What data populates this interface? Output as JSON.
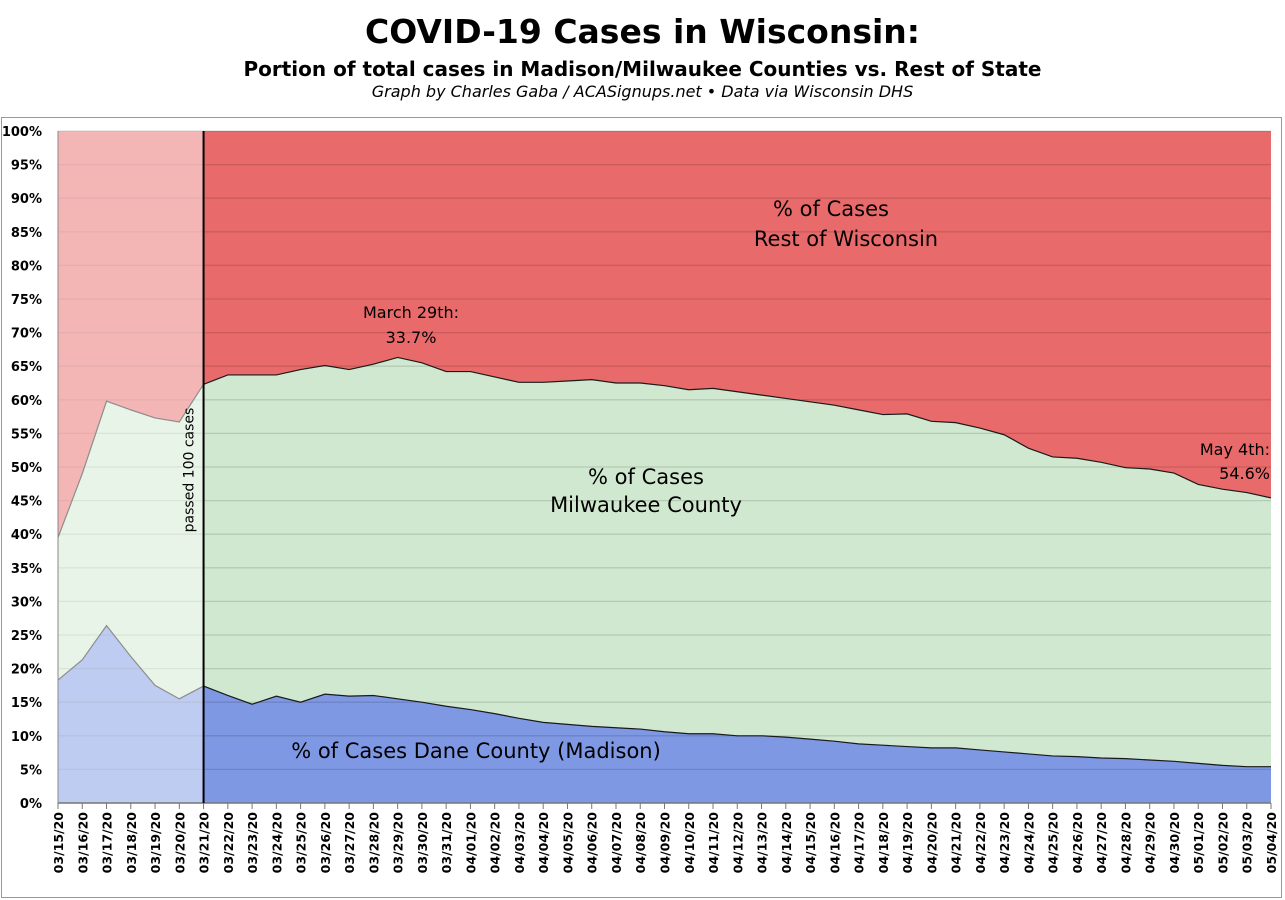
{
  "chart_data": {
    "type": "area",
    "stacked": true,
    "title": "COVID-19 Cases in Wisconsin:",
    "subtitle": "Portion of total cases in Madison/Milwaukee Counties vs. Rest of State",
    "credit": "Graph by Charles Gaba / ACASignups.net  •  Data via Wisconsin DHS",
    "xlabel": "",
    "ylabel": "",
    "ylim": [
      0,
      100
    ],
    "yticks": [
      "0%",
      "5%",
      "10%",
      "15%",
      "20%",
      "25%",
      "30%",
      "35%",
      "40%",
      "45%",
      "50%",
      "55%",
      "60%",
      "65%",
      "70%",
      "75%",
      "80%",
      "85%",
      "90%",
      "95%",
      "100%"
    ],
    "grid": true,
    "categories": [
      "03/15/20",
      "03/16/20",
      "03/17/20",
      "03/18/20",
      "03/19/20",
      "03/20/20",
      "03/21/20",
      "03/22/20",
      "03/23/20",
      "03/24/20",
      "03/25/20",
      "03/26/20",
      "03/27/20",
      "03/28/20",
      "03/29/20",
      "03/30/20",
      "03/31/20",
      "04/01/20",
      "04/02/20",
      "04/03/20",
      "04/04/20",
      "04/05/20",
      "04/06/20",
      "04/07/20",
      "04/08/20",
      "04/09/20",
      "04/10/20",
      "04/11/20",
      "04/12/20",
      "04/13/20",
      "04/14/20",
      "04/15/20",
      "04/16/20",
      "04/17/20",
      "04/18/20",
      "04/19/20",
      "04/20/20",
      "04/21/20",
      "04/22/20",
      "04/23/20",
      "04/24/20",
      "04/25/20",
      "04/26/20",
      "04/27/20",
      "04/28/20",
      "04/29/20",
      "04/30/20",
      "05/01/20",
      "05/02/20",
      "05/03/20",
      "05/04/20"
    ],
    "series": [
      {
        "name": "% of Cases Dane County (Madison)",
        "color": "#7f98e3",
        "values": [
          18.3,
          21.3,
          26.4,
          21.8,
          17.5,
          15.5,
          17.4,
          16.0,
          14.7,
          15.9,
          15.0,
          16.2,
          15.9,
          16.0,
          15.5,
          15.0,
          14.4,
          13.9,
          13.3,
          12.6,
          12.0,
          11.7,
          11.4,
          11.2,
          11.0,
          10.6,
          10.3,
          10.3,
          10.0,
          10.0,
          9.8,
          9.5,
          9.2,
          8.8,
          8.6,
          8.4,
          8.2,
          8.2,
          7.9,
          7.6,
          7.3,
          7.0,
          6.9,
          6.7,
          6.6,
          6.4,
          6.2,
          5.9,
          5.6,
          5.4,
          5.4
        ]
      },
      {
        "name": "% of Cases Milwaukee County",
        "color": "#d0e8cf",
        "values": [
          21.2,
          27.7,
          33.4,
          36.7,
          39.8,
          41.2,
          44.9,
          47.7,
          49.0,
          47.8,
          49.5,
          48.9,
          48.6,
          49.3,
          50.8,
          50.5,
          49.8,
          50.3,
          50.1,
          50.0,
          50.6,
          51.1,
          51.6,
          51.3,
          51.5,
          51.5,
          51.2,
          51.4,
          51.2,
          50.7,
          50.4,
          50.2,
          50.0,
          49.7,
          49.2,
          49.5,
          48.6,
          48.4,
          47.9,
          47.2,
          45.5,
          44.5,
          44.4,
          44.0,
          43.3,
          43.3,
          42.9,
          41.5,
          41.1,
          40.8,
          40.0
        ]
      },
      {
        "name": "% of Cases Rest of Wisconsin",
        "color": "#e86a6a",
        "values": [
          60.5,
          51.0,
          40.2,
          41.5,
          42.7,
          43.3,
          37.7,
          36.3,
          36.3,
          36.3,
          35.5,
          34.9,
          35.5,
          34.7,
          33.7,
          34.5,
          35.8,
          35.8,
          36.6,
          37.4,
          37.4,
          37.2,
          37.0,
          37.5,
          37.5,
          37.9,
          38.5,
          38.3,
          38.8,
          39.3,
          39.8,
          40.3,
          40.8,
          41.5,
          42.2,
          42.1,
          43.2,
          43.4,
          44.2,
          45.2,
          47.2,
          48.5,
          48.7,
          49.3,
          50.1,
          50.3,
          50.9,
          52.6,
          53.3,
          53.8,
          54.6
        ]
      }
    ],
    "series_labels": {
      "rest_line1": "% of Cases",
      "rest_line2": "Rest of Wisconsin",
      "milwaukee_line1": "% of Cases",
      "milwaukee_line2": "Milwaukee County",
      "dane": "% of Cases Dane County (Madison)"
    },
    "annotations": {
      "threshold_date": "03/21/20",
      "threshold_label": "passed 100 cases",
      "march29_line1": "March 29th:",
      "march29_line2": "33.7%",
      "may4_line1": "May 4th:",
      "may4_line2": "54.6%"
    }
  }
}
